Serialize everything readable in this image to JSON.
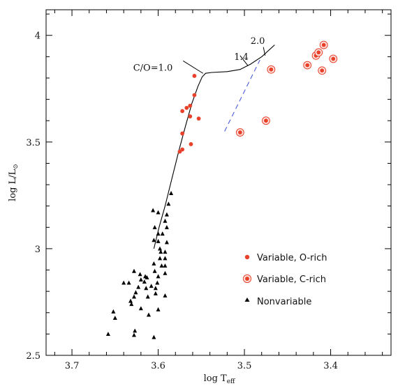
{
  "chart_data": {
    "type": "scatter",
    "title": "",
    "xlabel": {
      "main": "log T",
      "sub": "eff"
    },
    "ylabel": {
      "main": "log L/L",
      "sub": "⊙"
    },
    "xlim": [
      3.73,
      3.33
    ],
    "ylim": [
      2.5,
      4.12
    ],
    "x_reversed": true,
    "grid": false,
    "legend_position": "lower-right",
    "x_ticks": [
      {
        "value": 3.7,
        "label": "3.7"
      },
      {
        "value": 3.6,
        "label": "3.6"
      },
      {
        "value": 3.5,
        "label": "3.5"
      },
      {
        "value": 3.4,
        "label": "3.4"
      }
    ],
    "y_ticks": [
      {
        "value": 2.5,
        "label": "2.5"
      },
      {
        "value": 3.0,
        "label": "3"
      },
      {
        "value": 3.5,
        "label": "3.5"
      },
      {
        "value": 4.0,
        "label": "4"
      }
    ],
    "series": [
      {
        "name": "Variable, O-rich",
        "marker": "dot",
        "color": "#e8402a",
        "points": [
          [
            3.558,
            3.81
          ],
          [
            3.558,
            3.72
          ],
          [
            3.563,
            3.67
          ],
          [
            3.567,
            3.66
          ],
          [
            3.572,
            3.645
          ],
          [
            3.563,
            3.62
          ],
          [
            3.553,
            3.61
          ],
          [
            3.572,
            3.54
          ],
          [
            3.562,
            3.49
          ],
          [
            3.572,
            3.465
          ],
          [
            3.575,
            3.455
          ]
        ]
      },
      {
        "name": "Variable, C-rich",
        "marker": "ringed-dot",
        "color": "#e8402a",
        "points": [
          [
            3.505,
            3.545
          ],
          [
            3.475,
            3.6
          ],
          [
            3.469,
            3.84
          ],
          [
            3.427,
            3.86
          ],
          [
            3.417,
            3.905
          ],
          [
            3.414,
            3.92
          ],
          [
            3.408,
            3.955
          ],
          [
            3.397,
            3.89
          ],
          [
            3.41,
            3.835
          ]
        ]
      },
      {
        "name": "Nonvariable",
        "marker": "triangle",
        "color": "#000000",
        "points": [
          [
            3.585,
            3.26
          ],
          [
            3.588,
            3.21
          ],
          [
            3.59,
            3.16
          ],
          [
            3.606,
            3.18
          ],
          [
            3.6,
            3.17
          ],
          [
            3.592,
            3.13
          ],
          [
            3.604,
            3.1
          ],
          [
            3.59,
            3.1
          ],
          [
            3.595,
            3.07
          ],
          [
            3.6,
            3.07
          ],
          [
            3.605,
            3.04
          ],
          [
            3.6,
            3.035
          ],
          [
            3.59,
            3.03
          ],
          [
            3.598,
            3.0
          ],
          [
            3.597,
            2.985
          ],
          [
            3.592,
            2.985
          ],
          [
            3.598,
            2.955
          ],
          [
            3.592,
            2.955
          ],
          [
            3.605,
            2.93
          ],
          [
            3.596,
            2.92
          ],
          [
            3.604,
            2.895
          ],
          [
            3.592,
            2.885
          ],
          [
            3.6,
            2.87
          ],
          [
            3.615,
            2.87
          ],
          [
            3.613,
            2.865
          ],
          [
            3.628,
            2.895
          ],
          [
            3.621,
            2.88
          ],
          [
            3.64,
            2.84
          ],
          [
            3.634,
            2.84
          ],
          [
            3.616,
            2.845
          ],
          [
            3.601,
            2.84
          ],
          [
            3.623,
            2.82
          ],
          [
            3.614,
            2.815
          ],
          [
            3.608,
            2.825
          ],
          [
            3.603,
            2.815
          ],
          [
            3.626,
            2.795
          ],
          [
            3.592,
            2.78
          ],
          [
            3.612,
            2.775
          ],
          [
            3.603,
            2.79
          ],
          [
            3.628,
            2.775
          ],
          [
            3.632,
            2.755
          ],
          [
            3.631,
            2.74
          ],
          [
            3.62,
            2.72
          ],
          [
            3.6,
            2.715
          ],
          [
            3.611,
            2.69
          ],
          [
            3.652,
            2.705
          ],
          [
            3.65,
            2.675
          ],
          [
            3.627,
            2.615
          ],
          [
            3.628,
            2.595
          ],
          [
            3.605,
            2.585
          ],
          [
            3.658,
            2.6
          ],
          [
            3.592,
            2.92
          ],
          [
            3.62,
            2.855
          ]
        ]
      }
    ],
    "curve": {
      "points": [
        [
          3.605,
          3.0
        ],
        [
          3.599,
          3.1
        ],
        [
          3.592,
          3.2
        ],
        [
          3.584,
          3.33
        ],
        [
          3.576,
          3.46
        ],
        [
          3.568,
          3.58
        ],
        [
          3.561,
          3.68
        ],
        [
          3.554,
          3.76
        ],
        [
          3.549,
          3.805
        ],
        [
          3.545,
          3.822
        ],
        [
          3.538,
          3.826
        ],
        [
          3.52,
          3.83
        ],
        [
          3.505,
          3.84
        ],
        [
          3.493,
          3.865
        ],
        [
          3.48,
          3.9
        ],
        [
          3.465,
          3.955
        ]
      ]
    },
    "dashed_line": {
      "color": "#4b5bd6",
      "points": [
        [
          3.523,
          3.55
        ],
        [
          3.482,
          3.885
        ]
      ]
    },
    "annotations": [
      {
        "text": "C/O=1.0",
        "x": 3.629,
        "y": 3.835,
        "pointer": [
          [
            3.571,
            3.88
          ],
          [
            3.548,
            3.822
          ]
        ]
      },
      {
        "text": "1.4",
        "x": 3.512,
        "y": 3.885,
        "pointer": [
          [
            3.505,
            3.905
          ],
          [
            3.496,
            3.858
          ]
        ]
      },
      {
        "text": "2.0",
        "x": 3.493,
        "y": 3.96,
        "pointer": [
          [
            3.478,
            3.945
          ],
          [
            3.476,
            3.905
          ]
        ]
      }
    ]
  },
  "legend": {
    "items": [
      {
        "label": "Variable, O-rich",
        "marker": "dot"
      },
      {
        "label": "Variable, C-rich",
        "marker": "ringed-dot"
      },
      {
        "label": "Nonvariable",
        "marker": "triangle"
      }
    ]
  }
}
